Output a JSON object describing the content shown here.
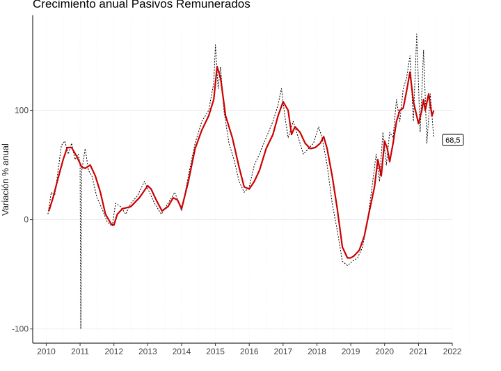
{
  "chart_data": {
    "type": "line",
    "title": "Crecimiento anual Pasivos Remunerados",
    "xlabel": "",
    "ylabel": "Variación % anual",
    "xlim": [
      2009.6,
      2022.0
    ],
    "ylim": [
      -113,
      187
    ],
    "x_ticks": [
      2010,
      2011,
      2012,
      2013,
      2014,
      2015,
      2016,
      2017,
      2018,
      2019,
      2020,
      2021,
      2022
    ],
    "x_tick_labels": [
      "2010",
      "2011",
      "2012",
      "2013",
      "2014",
      "2015",
      "2016",
      "2017",
      "2018",
      "2019",
      "2020",
      "2021",
      "2022"
    ],
    "y_ticks": [
      -100,
      0,
      100
    ],
    "y_tick_labels": [
      "-100",
      "0",
      "100"
    ],
    "grid": true,
    "legend": "none",
    "colors": {
      "smoothed": "#cc0000",
      "daily": "#000000"
    },
    "series": [
      {
        "style": "solid",
        "x": [
          2010.08,
          2010.2,
          2010.35,
          2010.5,
          2010.62,
          2010.75,
          2010.9,
          2011.05,
          2011.15,
          2011.3,
          2011.45,
          2011.6,
          2011.75,
          2011.92,
          2012.0,
          2012.1,
          2012.25,
          2012.5,
          2012.75,
          2013.0,
          2013.1,
          2013.25,
          2013.42,
          2013.6,
          2013.75,
          2013.88,
          2014.0,
          2014.2,
          2014.4,
          2014.6,
          2014.8,
          2014.95,
          2015.05,
          2015.15,
          2015.3,
          2015.5,
          2015.7,
          2015.85,
          2016.0,
          2016.15,
          2016.3,
          2016.5,
          2016.7,
          2016.85,
          2017.0,
          2017.15,
          2017.25,
          2017.35,
          2017.5,
          2017.65,
          2017.8,
          2017.95,
          2018.1,
          2018.2,
          2018.3,
          2018.45,
          2018.6,
          2018.75,
          2018.9,
          2019.0,
          2019.1,
          2019.25,
          2019.4,
          2019.55,
          2019.7,
          2019.8,
          2019.9,
          2020.0,
          2020.08,
          2020.15,
          2020.25,
          2020.35,
          2020.45,
          2020.55,
          2020.65,
          2020.75,
          2020.85,
          2021.0,
          2021.1,
          2021.15,
          2021.2,
          2021.3,
          2021.35,
          2021.4,
          2021.45
        ],
        "y": [
          8,
          20,
          38,
          55,
          66,
          66,
          58,
          48,
          47,
          50,
          40,
          25,
          5,
          -4,
          -5,
          5,
          10,
          12,
          20,
          31,
          28,
          18,
          8,
          12,
          20,
          18,
          10,
          35,
          65,
          82,
          95,
          110,
          140,
          130,
          95,
          75,
          48,
          30,
          28,
          35,
          45,
          65,
          78,
          95,
          108,
          100,
          78,
          85,
          80,
          70,
          65,
          66,
          70,
          76,
          65,
          40,
          10,
          -25,
          -35,
          -35,
          -33,
          -28,
          -15,
          8,
          30,
          55,
          40,
          72,
          65,
          53,
          70,
          90,
          100,
          102,
          118,
          135,
          108,
          88,
          100,
          110,
          100,
          115,
          105,
          95,
          100
        ]
      },
      {
        "style": "dotted",
        "x": [
          2010.05,
          2010.15,
          2010.25,
          2010.35,
          2010.45,
          2010.55,
          2010.65,
          2010.75,
          2010.85,
          2010.95,
          2011.0,
          2011.02,
          2011.05,
          2011.15,
          2011.25,
          2011.35,
          2011.5,
          2011.65,
          2011.8,
          2011.95,
          2012.05,
          2012.2,
          2012.35,
          2012.5,
          2012.7,
          2012.9,
          2013.05,
          2013.2,
          2013.4,
          2013.6,
          2013.8,
          2014.0,
          2014.2,
          2014.4,
          2014.6,
          2014.8,
          2014.95,
          2015.0,
          2015.08,
          2015.15,
          2015.25,
          2015.4,
          2015.55,
          2015.7,
          2015.85,
          2016.0,
          2016.15,
          2016.3,
          2016.5,
          2016.7,
          2016.85,
          2016.95,
          2017.05,
          2017.15,
          2017.3,
          2017.45,
          2017.6,
          2017.75,
          2017.9,
          2018.05,
          2018.15,
          2018.3,
          2018.45,
          2018.6,
          2018.75,
          2018.9,
          2019.05,
          2019.2,
          2019.35,
          2019.5,
          2019.65,
          2019.75,
          2019.85,
          2019.95,
          2020.05,
          2020.15,
          2020.25,
          2020.35,
          2020.45,
          2020.55,
          2020.65,
          2020.75,
          2020.85,
          2020.95,
          2021.05,
          2021.15,
          2021.25,
          2021.35,
          2021.45
        ],
        "y": [
          5,
          25,
          22,
          45,
          68,
          72,
          60,
          70,
          55,
          60,
          50,
          -100,
          45,
          65,
          45,
          40,
          20,
          10,
          -2,
          -6,
          15,
          12,
          5,
          15,
          22,
          35,
          25,
          15,
          5,
          15,
          25,
          8,
          40,
          70,
          90,
          100,
          125,
          160,
          120,
          140,
          100,
          70,
          55,
          35,
          25,
          30,
          50,
          60,
          75,
          90,
          105,
          120,
          95,
          75,
          90,
          75,
          60,
          65,
          70,
          85,
          75,
          50,
          15,
          -10,
          -38,
          -42,
          -38,
          -35,
          -25,
          0,
          35,
          60,
          35,
          80,
          50,
          80,
          75,
          110,
          90,
          120,
          130,
          150,
          90,
          170,
          80,
          155,
          70,
          115,
          75
        ]
      }
    ],
    "annotation": {
      "label": "68,5",
      "x": 2021.75,
      "y": 73
    }
  }
}
